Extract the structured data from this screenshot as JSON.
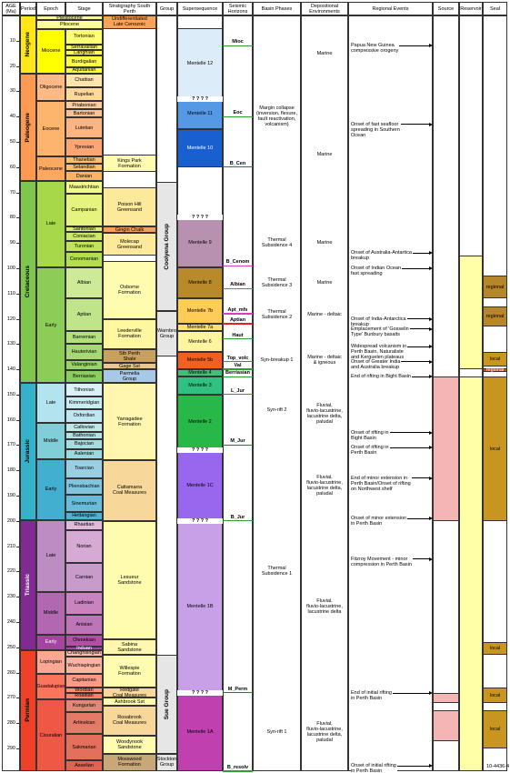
{
  "header": {
    "age": "AGE (Ma)",
    "period": "Period",
    "epoch": "Epoch",
    "stage": "Stage",
    "stratigraphy": "Stratigraphy South Perth",
    "group": "Group",
    "supersequence": "Supersequence",
    "horizons": "Seismic Horizons",
    "basin": "Basin Phases",
    "environments": "Depositional Environments",
    "events": "Regional Events",
    "source": "Source",
    "reservoir": "Reservoir",
    "seal": "Seal"
  },
  "age_axis": {
    "ylim": [
      0,
      299
    ],
    "yticks": [
      10,
      20,
      30,
      40,
      50,
      60,
      70,
      80,
      90,
      100,
      110,
      120,
      130,
      140,
      150,
      160,
      170,
      180,
      190,
      200,
      210,
      220,
      230,
      240,
      250,
      260,
      270,
      280,
      290
    ]
  },
  "periods": [
    {
      "label": "Neogene",
      "from": 0,
      "to": 23,
      "color": "#ffe619"
    },
    {
      "label": "Paleogene",
      "from": 23,
      "to": 65.5,
      "color": "#fd9a52"
    },
    {
      "label": "Cretaceous",
      "from": 65.5,
      "to": 145.5,
      "color": "#7fc64e"
    },
    {
      "label": "Jurassic",
      "from": 145.5,
      "to": 199.6,
      "color": "#34b2c9"
    },
    {
      "label": "Triassic",
      "from": 199.6,
      "to": 251,
      "color": "#812b92"
    },
    {
      "label": "Permian",
      "from": 251,
      "to": 299,
      "color": "#f04028"
    }
  ],
  "epochs": [
    {
      "label": "Pleistocene",
      "from": 0,
      "to": 1.8,
      "color": "#fff2ae"
    },
    {
      "label": "Pliocene",
      "from": 1.8,
      "to": 5.3,
      "color": "#ffff99"
    },
    {
      "label": "Miocene",
      "from": 5.3,
      "to": 23,
      "color": "#ffff00"
    },
    {
      "label": "Oligocene",
      "from": 23,
      "to": 33.9,
      "color": "#feba86"
    },
    {
      "label": "Eocene",
      "from": 33.9,
      "to": 55.8,
      "color": "#fdb46c"
    },
    {
      "label": "Paleocene",
      "from": 55.8,
      "to": 65.5,
      "color": "#fda75f"
    },
    {
      "label": "Late",
      "from": 65.5,
      "to": 99.6,
      "color": "#a6d84a"
    },
    {
      "label": "Early",
      "from": 99.6,
      "to": 145.5,
      "color": "#8ccd57"
    },
    {
      "label": "Late",
      "from": 145.5,
      "to": 161.2,
      "color": "#b3e3ee"
    },
    {
      "label": "Middle",
      "from": 161.2,
      "to": 175.6,
      "color": "#80cfd8"
    },
    {
      "label": "Early",
      "from": 175.6,
      "to": 199.6,
      "color": "#42aed0"
    },
    {
      "label": "Late",
      "from": 199.6,
      "to": 228,
      "color": "#bd8cc3"
    },
    {
      "label": "Middle",
      "from": 228,
      "to": 245,
      "color": "#b168b1"
    },
    {
      "label": "Early",
      "from": 245,
      "to": 251,
      "color": "#a4469f"
    },
    {
      "label": "Lopingian",
      "from": 251,
      "to": 260.4,
      "color": "#fba794"
    },
    {
      "label": "Guadalupian",
      "from": 260.4,
      "to": 270.6,
      "color": "#fb745c"
    },
    {
      "label": "Cisuralian",
      "from": 270.6,
      "to": 299,
      "color": "#ef5845"
    }
  ],
  "stages": [
    {
      "label": "Tortonian",
      "from": 5.3,
      "to": 11.6,
      "color": "#ffff73"
    },
    {
      "label": "Serravallian",
      "from": 11.6,
      "to": 13.7,
      "color": "#ffff59"
    },
    {
      "label": "Langhian",
      "from": 13.7,
      "to": 16,
      "color": "#ffff4d"
    },
    {
      "label": "Burdigalian",
      "from": 16,
      "to": 20.4,
      "color": "#ffff41"
    },
    {
      "label": "Aquitanian",
      "from": 20.4,
      "to": 23,
      "color": "#ffff33"
    },
    {
      "label": "Chattian",
      "from": 23,
      "to": 28.4,
      "color": "#fee6aa"
    },
    {
      "label": "Rupelian",
      "from": 28.4,
      "to": 33.9,
      "color": "#fed99a"
    },
    {
      "label": "Priabonian",
      "from": 33.9,
      "to": 37.2,
      "color": "#fdcda1"
    },
    {
      "label": "Bartonian",
      "from": 37.2,
      "to": 40.4,
      "color": "#fdc091"
    },
    {
      "label": "Lutetian",
      "from": 40.4,
      "to": 48.6,
      "color": "#fcb482"
    },
    {
      "label": "Ypresian",
      "from": 48.6,
      "to": 55.8,
      "color": "#fca773"
    },
    {
      "label": "Thanetian",
      "from": 55.8,
      "to": 58.7,
      "color": "#fdbf6f"
    },
    {
      "label": "Selandian",
      "from": 58.7,
      "to": 61.7,
      "color": "#febf65"
    },
    {
      "label": "Danian",
      "from": 61.7,
      "to": 65.5,
      "color": "#fdb462"
    },
    {
      "label": "Maastrichtian",
      "from": 65.5,
      "to": 70.6,
      "color": "#f2fa8c"
    },
    {
      "label": "Campanian",
      "from": 70.6,
      "to": 83.5,
      "color": "#e6f47f"
    },
    {
      "label": "Santonian",
      "from": 83.5,
      "to": 85.8,
      "color": "#d9ef74"
    },
    {
      "label": "Coniacian",
      "from": 85.8,
      "to": 89.3,
      "color": "#cce96a"
    },
    {
      "label": "Turonian",
      "from": 89.3,
      "to": 93.5,
      "color": "#bfe35d"
    },
    {
      "label": "Cenomanian",
      "from": 93.5,
      "to": 99.6,
      "color": "#b3de53"
    },
    {
      "label": "Albian",
      "from": 99.6,
      "to": 112,
      "color": "#ccea97"
    },
    {
      "label": "Aptian",
      "from": 112,
      "to": 125,
      "color": "#bfe48a"
    },
    {
      "label": "Barremian",
      "from": 125,
      "to": 130,
      "color": "#b3df7f"
    },
    {
      "label": "Hauterivian",
      "from": 130,
      "to": 136.4,
      "color": "#a6d975"
    },
    {
      "label": "Valanginian",
      "from": 136.4,
      "to": 140.2,
      "color": "#99d36a"
    },
    {
      "label": "Berriasian",
      "from": 140.2,
      "to": 145.5,
      "color": "#8ccd60"
    },
    {
      "label": "Tithonian",
      "from": 145.5,
      "to": 150.8,
      "color": "#d9f1f7"
    },
    {
      "label": "Kimmeridgian",
      "from": 150.8,
      "to": 155.7,
      "color": "#ccecf4"
    },
    {
      "label": "Oxfordian",
      "from": 155.7,
      "to": 161.2,
      "color": "#bfe7f1"
    },
    {
      "label": "Callovian",
      "from": 161.2,
      "to": 164.7,
      "color": "#bfe7e5"
    },
    {
      "label": "Bathonian",
      "from": 164.7,
      "to": 167.7,
      "color": "#b3e2e3"
    },
    {
      "label": "Bajocian",
      "from": 167.7,
      "to": 171.6,
      "color": "#a6dde0"
    },
    {
      "label": "Aalenian",
      "from": 171.6,
      "to": 175.6,
      "color": "#9ad9dd"
    },
    {
      "label": "Toarcian",
      "from": 175.6,
      "to": 183,
      "color": "#99cee3"
    },
    {
      "label": "Pliensbachian",
      "from": 183,
      "to": 189.6,
      "color": "#80c5dd"
    },
    {
      "label": "Sinemurian",
      "from": 189.6,
      "to": 196.5,
      "color": "#67bcd8"
    },
    {
      "label": "Hettangian",
      "from": 196.5,
      "to": 199.6,
      "color": "#4eb3d3"
    },
    {
      "label": "Rhaetian",
      "from": 199.6,
      "to": 203.6,
      "color": "#e3b9db"
    },
    {
      "label": "Norian",
      "from": 203.6,
      "to": 216.5,
      "color": "#d6aad3"
    },
    {
      "label": "Carnian",
      "from": 216.5,
      "to": 228,
      "color": "#c99bcb"
    },
    {
      "label": "Ladinian",
      "from": 228,
      "to": 237,
      "color": "#c983bf"
    },
    {
      "label": "Anisian",
      "from": 237,
      "to": 245,
      "color": "#bc75b7"
    },
    {
      "label": "Olenekian",
      "from": 245,
      "to": 249.7,
      "color": "#b051a5"
    },
    {
      "label": "Induan",
      "from": 249.7,
      "to": 251,
      "color": "#a4469f"
    },
    {
      "label": "Changhsingian",
      "from": 251,
      "to": 253.8,
      "color": "#fcc0b2"
    },
    {
      "label": "Wuchiapingian",
      "from": 253.8,
      "to": 260.4,
      "color": "#fcb4a2"
    },
    {
      "label": "Capitanian",
      "from": 260.4,
      "to": 265.8,
      "color": "#fb9a85"
    },
    {
      "label": "Wordian",
      "from": 265.8,
      "to": 268,
      "color": "#fb8d76"
    },
    {
      "label": "Roadian",
      "from": 268,
      "to": 270.6,
      "color": "#fb8069"
    },
    {
      "label": "Kungurian",
      "from": 270.6,
      "to": 275.6,
      "color": "#e38776"
    },
    {
      "label": "Artinskian",
      "from": 275.6,
      "to": 284.4,
      "color": "#e37b68"
    },
    {
      "label": "Sakmarian",
      "from": 284.4,
      "to": 294.6,
      "color": "#e36f5c"
    },
    {
      "label": "Asselian",
      "from": 294.6,
      "to": 299,
      "color": "#e36350"
    }
  ],
  "formations": [
    {
      "label": "Undifferentiated\nLate Cenozoic",
      "from": 0,
      "to": 5.3,
      "color": "#f7a35c"
    },
    {
      "label": "Kings Park\nFormation",
      "from": 55,
      "to": 62,
      "color": "#fffcb0"
    },
    {
      "label": "Poison Hill\nGreensand",
      "from": 68,
      "to": 83.5,
      "color": "#fde99a"
    },
    {
      "label": "Gingin Chalk",
      "from": 83.5,
      "to": 86,
      "color": "#f1a060"
    },
    {
      "label": "Molecap\nGreensand",
      "from": 86,
      "to": 95,
      "color": "#fde99a"
    },
    {
      "label": "Osborne\nFormation",
      "from": 97,
      "to": 120,
      "color": "#fffcb0"
    },
    {
      "label": "Leederville\nFormation",
      "from": 120,
      "to": 132,
      "color": "#fff8a0"
    },
    {
      "label": "Sth Perth\nShale",
      "from": 132,
      "to": 137.5,
      "color": "#c8a060"
    },
    {
      "label": "Gage Sst",
      "from": 137.5,
      "to": 140,
      "color": "#e8c890"
    },
    {
      "label": "Parmelia\nGroup",
      "from": 140,
      "to": 145.5,
      "color": "#a8c8e8"
    },
    {
      "label": "Yarragadee\nFormation",
      "from": 145.5,
      "to": 176,
      "color": "#fff6b0"
    },
    {
      "label": "Cattamarra\nCoal Measures",
      "from": 176,
      "to": 200,
      "color": "#f8d79a"
    },
    {
      "label": "Lesueur\nSandstone",
      "from": 200,
      "to": 247,
      "color": "#fffcb0"
    },
    {
      "label": "Sabina\nSandstone",
      "from": 247,
      "to": 253,
      "color": "#fff6b0"
    },
    {
      "label": "Willespie\nFormation",
      "from": 253,
      "to": 266,
      "color": "#fffcb0"
    },
    {
      "label": "Redgate\nCoal Measures",
      "from": 266,
      "to": 270,
      "color": "#f8d79a"
    },
    {
      "label": "Ashbrook Sst",
      "from": 270,
      "to": 273,
      "color": "#fffcb0"
    },
    {
      "label": "Rosabrook\nCoal Measures",
      "from": 273,
      "to": 285,
      "color": "#f8d79a"
    },
    {
      "label": "Woodynook\nSandstone",
      "from": 285,
      "to": 292,
      "color": "#fffcb0"
    },
    {
      "label": "Mosswood\nFormation",
      "from": 292,
      "to": 299,
      "color": "#c8a878"
    }
  ],
  "groups": [
    {
      "label": "Coolyena Group",
      "from": 66,
      "to": 117,
      "color": "#e6e6e6"
    },
    {
      "label": "Warnbro Group",
      "from": 117,
      "to": 135,
      "color": "#e6e6e6"
    },
    {
      "label": "Sue Group",
      "from": 253,
      "to": 292,
      "color": "#e6e6e6"
    },
    {
      "label": "Stockton Group",
      "from": 292,
      "to": 299,
      "color": "#e6e6e6"
    }
  ],
  "supersequences": [
    {
      "label": "Mentelle 12",
      "from": 5,
      "to": 33,
      "color": "#dcecf8"
    },
    {
      "label": "Mentelle 11",
      "from": 33,
      "to": 45,
      "color": "#5599e6"
    },
    {
      "label": "Mentelle 10",
      "from": 45,
      "to": 60,
      "color": "#1a5fd0"
    },
    {
      "label": "Mentelle 9",
      "from": 80,
      "to": 99.6,
      "color": "#b890b0"
    },
    {
      "label": "Mentelle 8",
      "from": 99.6,
      "to": 112,
      "color": "#b88a2a"
    },
    {
      "label": "Mentelle 7b",
      "from": 112,
      "to": 122,
      "color": "#ffcc55"
    },
    {
      "label": "Mentelle 7a",
      "from": 122,
      "to": 125,
      "color": "#ffe070"
    },
    {
      "label": "Mentelle 6",
      "from": 125,
      "to": 133,
      "color": "#fff5a0"
    },
    {
      "label": "Mentelle 5b",
      "from": 133,
      "to": 140,
      "color": "#f06020"
    },
    {
      "label": "Mentelle 4",
      "from": 140,
      "to": 143,
      "color": "#40c070"
    },
    {
      "label": "Mentelle 3",
      "from": 143,
      "to": 150,
      "color": "#30c080"
    },
    {
      "label": "Mentelle 2",
      "from": 150,
      "to": 172,
      "color": "#28b848"
    },
    {
      "label": "Mentelle 1C",
      "from": 172,
      "to": 200,
      "color": "#9966ee"
    },
    {
      "label": "Mentelle 1B",
      "from": 200,
      "to": 268,
      "color": "#c8a0e8"
    },
    {
      "label": "Mentelle 1A",
      "from": 268,
      "to": 299,
      "color": "#c040b0"
    }
  ],
  "uncertain": [
    {
      "label": "? ? ? ?",
      "age": 33
    },
    {
      "label": "? ? ? ?",
      "age": 80
    },
    {
      "label": "? ? ? ?",
      "age": 172
    },
    {
      "label": "? ? ? ?",
      "age": 200
    },
    {
      "label": "? ? ? ?",
      "age": 268
    }
  ],
  "horizons": [
    {
      "label": "Mioc",
      "age": 12,
      "color": "#2ca02c"
    },
    {
      "label": "Eoc",
      "age": 40,
      "color": "#2ca02c"
    },
    {
      "label": "B_Cen",
      "age": 60,
      "color": "#1f5fd0"
    },
    {
      "label": "B_Cenom",
      "age": 99,
      "color": "#d040c0"
    },
    {
      "label": "Albian",
      "age": 108,
      "color": "#d040c0"
    },
    {
      "label": "Apt_mfs",
      "age": 118,
      "color": "#d040c0"
    },
    {
      "label": "Aptian",
      "age": 122,
      "color": "#e02020"
    },
    {
      "label": "Haut",
      "age": 128,
      "color": "#2ca02c"
    },
    {
      "label": "Top_volc",
      "age": 137,
      "color": "#2ca02c"
    },
    {
      "label": "Val",
      "age": 140,
      "color": "#2ca02c"
    },
    {
      "label": "Berriasian",
      "age": 143,
      "color": "#2ca02c"
    },
    {
      "label": "L_Jur",
      "age": 150,
      "color": "#2ca02c"
    },
    {
      "label": "M_Jur",
      "age": 170,
      "color": "#e02020"
    },
    {
      "label": "B_Jur",
      "age": 200,
      "color": "#2ca02c"
    },
    {
      "label": "M_Perm",
      "age": 268,
      "color": "#e02020"
    },
    {
      "label": "B_resolv",
      "age": 299,
      "color": "#2ca02c"
    }
  ],
  "basin_phases": [
    {
      "label": "Margin collapse\n(inversion, flexure,\nfault reactivation,\nvolcanism)",
      "from": 0,
      "to": 80
    },
    {
      "label": "Thermal\nSubsidence 4",
      "from": 80,
      "to": 99.6
    },
    {
      "label": "Thermal\nSubsidence 3",
      "from": 99.6,
      "to": 112
    },
    {
      "label": "Thermal\nSubsidence 2",
      "from": 112,
      "to": 125
    },
    {
      "label": "Syn-breakup 1",
      "from": 133,
      "to": 140
    },
    {
      "label": "Syn-rift 2",
      "from": 140,
      "to": 172
    },
    {
      "label": "Thermal\nSubsidence 1",
      "from": 172,
      "to": 268
    },
    {
      "label": "Syn-rift 1",
      "from": 268,
      "to": 299
    }
  ],
  "environments": [
    {
      "label": "Marine",
      "from": 0,
      "to": 30
    },
    {
      "label": "Marine",
      "from": 30,
      "to": 80
    },
    {
      "label": "Marine",
      "from": 80,
      "to": 99.6
    },
    {
      "label": "Marine",
      "from": 99.6,
      "to": 112
    },
    {
      "label": "Marine - deltaic",
      "from": 112,
      "to": 125
    },
    {
      "label": "Marine - deltaic\n& igneous",
      "from": 133,
      "to": 140
    },
    {
      "label": "Fluvial,\nfluvio-lacustrine,\nlacustrine delta,\npaludal",
      "from": 143,
      "to": 172
    },
    {
      "label": "Fluvial,\nfluvio-lacustrine,\nlacustrine delta,\npaludal",
      "from": 172,
      "to": 200
    },
    {
      "label": "Fluvial,\nfluvio-lacustrine,\nlacustrine delta",
      "from": 200,
      "to": 268
    },
    {
      "label": "Fluvial,\nfluvio-lacustrine,\nlacustrine delta,\npaludal",
      "from": 268,
      "to": 299
    }
  ],
  "events": [
    {
      "label": "Papua New Guinea\ncompressive orogeny",
      "age": 12
    },
    {
      "label": "Onset of fast seafloor\nspreading in Southern\nOcean",
      "age": 43
    },
    {
      "label": "Onset of Australia-Antartica\nbreakup",
      "age": 94
    },
    {
      "label": "Onset of Indian Ocean\nfast spreading",
      "age": 100
    },
    {
      "label": "Onset of India-Antarctica\nbreakup",
      "age": 120
    },
    {
      "label": "Emplacement of 'Gosselin\nType' Bunbury basalts",
      "age": 124
    },
    {
      "label": "Widespread volcanism in\nPerth Basin, Naturaliste\nand Kerguelen plateaus",
      "age": 131
    },
    {
      "label": "Onset of Greater India\nand Australia breakup",
      "age": 137
    },
    {
      "label": "End of rifting in Bight Basin",
      "age": 143
    },
    {
      "label": "Onset of rifting in\nBight Basin",
      "age": 165
    },
    {
      "label": "Onset of rifting in\nPerth Basin",
      "age": 171
    },
    {
      "label": "End of minor extension in\nPerth Basin/Onset of rifting\non Northwest shelf",
      "age": 183
    },
    {
      "label": "Onset of minor extension\nin Perth Basin",
      "age": 199
    },
    {
      "label": "Fitzroy Movement - minor\ncompression in Perth Basin",
      "age": 215
    },
    {
      "label": "End of initial rifting\nin Perth Basin",
      "age": 268
    },
    {
      "label": "Onset of initial rifting\nin Perth Basin",
      "age": 297
    }
  ],
  "source": [
    {
      "from": 143,
      "to": 200,
      "color": "#f4b6b4"
    },
    {
      "from": 268,
      "to": 272,
      "color": "#f4b6b4"
    },
    {
      "from": 275,
      "to": 287,
      "color": "#f4b6b4"
    }
  ],
  "reservoir": [
    {
      "from": 95,
      "to": 140,
      "color": "#ffffa8"
    },
    {
      "from": 143,
      "to": 299,
      "color": "#ffffa8"
    }
  ],
  "seal": [
    {
      "label": "regional",
      "from": 103,
      "to": 112,
      "color": "#b8862a"
    },
    {
      "label": "regional",
      "from": 115,
      "to": 123,
      "color": "#b8862a"
    },
    {
      "label": "local",
      "from": 133,
      "to": 139,
      "color": "#c8961e"
    },
    {
      "label": "regional",
      "from": 139.5,
      "to": 141,
      "color": "#e04020"
    },
    {
      "label": "local",
      "from": 143,
      "to": 200,
      "color": "#c8961e"
    },
    {
      "label": "local",
      "from": 248,
      "to": 253,
      "color": "#c8961e"
    },
    {
      "label": "local",
      "from": 266,
      "to": 272,
      "color": "#c8961e"
    },
    {
      "label": "local",
      "from": 275,
      "to": 290,
      "color": "#c8961e"
    }
  ],
  "figure_id": "10-4436-4"
}
